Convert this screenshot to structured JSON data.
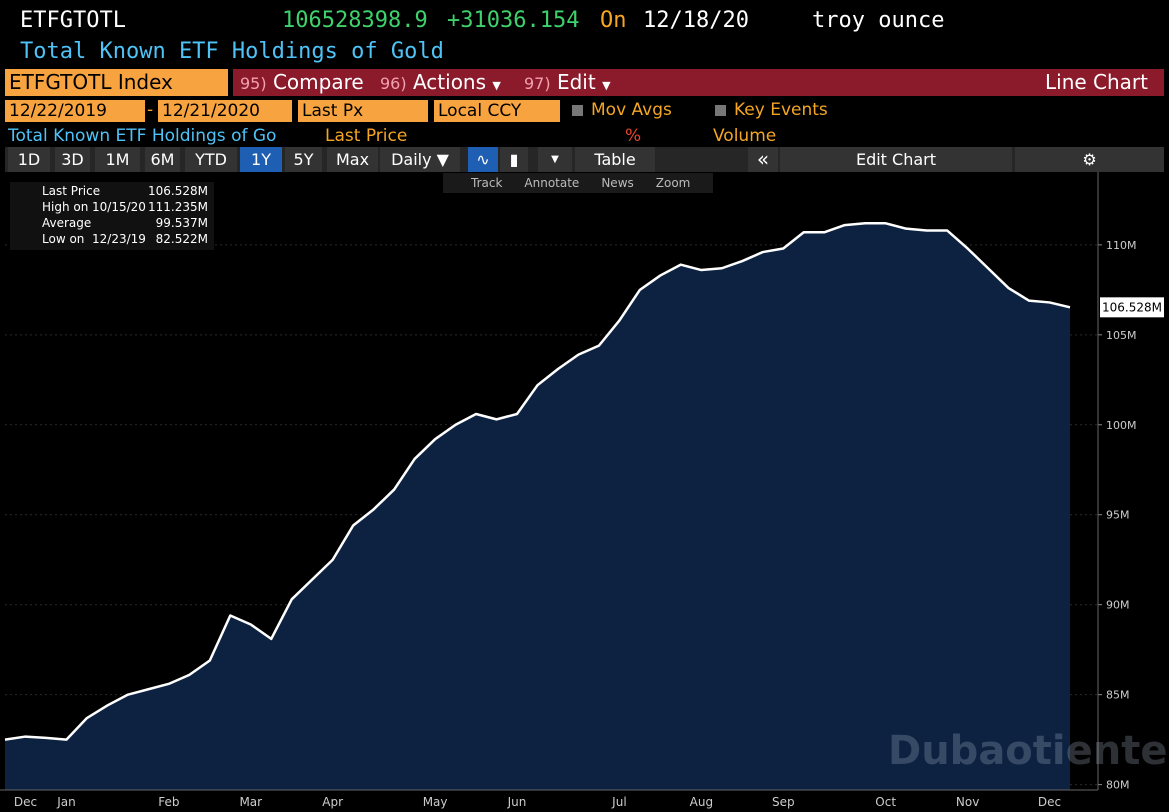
{
  "header": {
    "ticker": "ETFGTOTL",
    "price": "106528398.9",
    "change": "+31036.154",
    "on": "On",
    "date": "12/18/20",
    "unit": "troy ounce",
    "name": "Total Known ETF Holdings of Gold"
  },
  "toolbar": {
    "security": "ETFGTOTL Index",
    "items": [
      {
        "num": "95)",
        "label": "Compare"
      },
      {
        "num": "96)",
        "label": "Actions"
      },
      {
        "num": "97)",
        "label": "Edit"
      }
    ],
    "view": "Line Chart"
  },
  "range": {
    "start": "12/22/2019",
    "sep": "-",
    "end": "12/21/2020",
    "field": "Last Px",
    "currency": "Local CCY",
    "mov_avgs": "Mov Avgs",
    "key_events": "Key Events"
  },
  "panels": {
    "name": "Total Known ETF Holdings of Go",
    "last": "Last Price",
    "pct": "%",
    "volume": "Volume"
  },
  "periods": [
    "1D",
    "3D",
    "1M",
    "6M",
    "YTD",
    "1Y",
    "5Y",
    "Max"
  ],
  "active_period": 5,
  "frequency": "Daily ▼",
  "table": "Table",
  "collapse": "«",
  "edit_chart": "Edit Chart",
  "tools": [
    "Track",
    "Annotate",
    "News",
    "Zoom"
  ],
  "legend": [
    {
      "name": "Last Price",
      "value": "106.528M"
    },
    {
      "name": "High on",
      "date": "10/15/20",
      "value": "111.235M"
    },
    {
      "name": "Average",
      "value": "99.537M"
    },
    {
      "name": "Low on",
      "date": "12/23/19",
      "value": "82.522M"
    }
  ],
  "watermark": "Dubaotiente",
  "chart_data": {
    "type": "area",
    "color": "#ffffff",
    "fill": "#0d2240",
    "grid": true,
    "categories": [
      null,
      "Dec",
      null,
      "Jan",
      null,
      null,
      null,
      null,
      "Feb",
      null,
      null,
      null,
      "Mar",
      null,
      null,
      null,
      "Apr",
      null,
      null,
      null,
      null,
      "May",
      null,
      null,
      null,
      "Jun",
      null,
      null,
      null,
      null,
      "Jul",
      null,
      null,
      null,
      "Aug",
      null,
      null,
      null,
      "Sep",
      null,
      null,
      null,
      null,
      "Oct",
      null,
      null,
      null,
      "Nov",
      null,
      null,
      null,
      "Dec",
      null
    ],
    "values": [
      82.5,
      82.67,
      82.6,
      82.5,
      83.7,
      84.4,
      85.0,
      85.3,
      85.6,
      86.1,
      86.9,
      89.4,
      88.9,
      88.1,
      90.3,
      91.4,
      92.5,
      94.4,
      95.3,
      96.4,
      98.1,
      99.2,
      100.0,
      100.6,
      100.3,
      100.6,
      102.2,
      103.1,
      103.9,
      104.4,
      105.8,
      107.5,
      108.3,
      108.9,
      108.6,
      108.7,
      109.1,
      109.6,
      109.8,
      110.7,
      110.7,
      111.1,
      111.2,
      111.2,
      110.9,
      110.8,
      110.8,
      109.8,
      108.7,
      107.6,
      106.9,
      106.8,
      106.528
    ],
    "last_tag": "106.528M",
    "ylim": [
      79.7,
      114.05
    ],
    "yticks": [
      {
        "value": 80,
        "label": "80M"
      },
      {
        "value": 85,
        "label": "85M"
      },
      {
        "value": 90,
        "label": "90M"
      },
      {
        "value": 95,
        "label": "95M"
      },
      {
        "value": 100,
        "label": "100M"
      },
      {
        "value": 105,
        "label": "105M"
      },
      {
        "value": 110,
        "label": "110M"
      }
    ]
  }
}
